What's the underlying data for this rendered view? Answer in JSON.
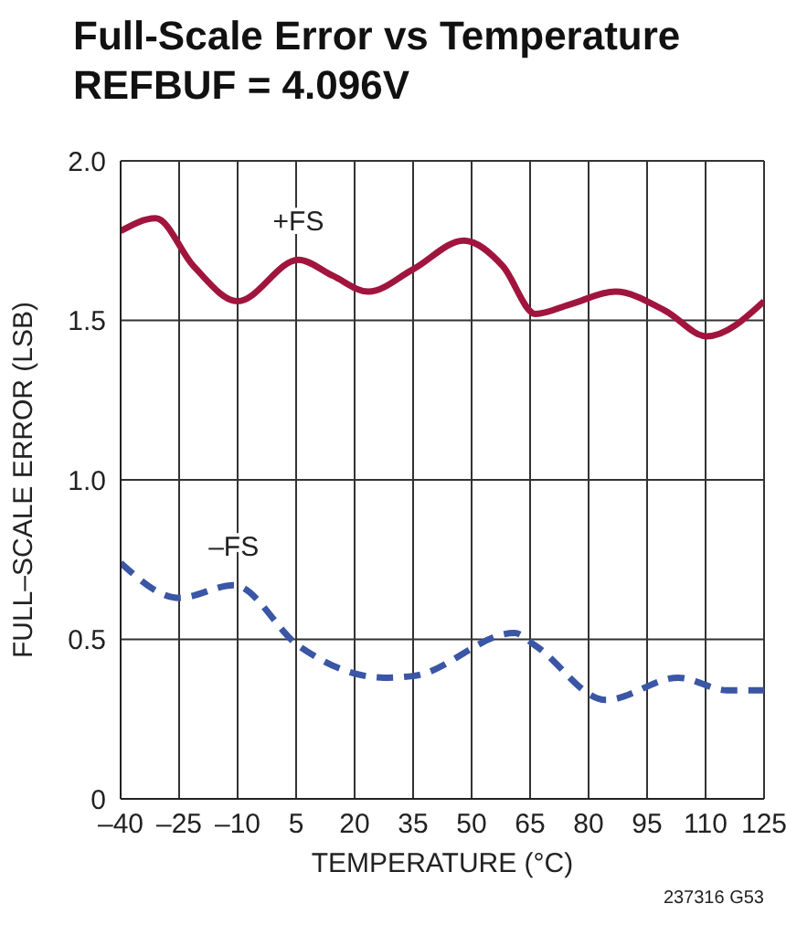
{
  "chart_data": {
    "type": "line",
    "title": "Full-Scale Error vs Temperature",
    "subtitle": "REFBUF = 4.096V",
    "xlabel": "TEMPERATURE (°C)",
    "ylabel": "FULL–SCALE ERROR (LSB)",
    "annotations": [
      "237316 G53"
    ],
    "xlim": [
      -40,
      125
    ],
    "xticks": [
      {
        "value": -40,
        "label": "–40"
      },
      {
        "value": -25,
        "label": "–25"
      },
      {
        "value": -10,
        "label": "–10"
      },
      5,
      20,
      35,
      50,
      65,
      80,
      95,
      110,
      125
    ],
    "ylim": [
      0,
      2
    ],
    "yticks": [
      0,
      0.5,
      {
        "value": 1,
        "label": "1.0"
      },
      1.5,
      {
        "value": 2,
        "label": "2.0"
      }
    ],
    "grid": true,
    "marker": "none",
    "series": [
      {
        "name": "+FS",
        "color": "#a0153e",
        "line_style": "solid",
        "x": [
          -40,
          -31,
          -21.3,
          -10,
          5.6,
          14.4,
          23.5,
          35,
          48,
          58,
          66.4,
          75.2,
          86.9,
          99.7,
          110.3,
          125
        ],
        "values": [
          1.78,
          1.82,
          1.67,
          1.56,
          1.69,
          1.64,
          1.59,
          1.66,
          1.75,
          1.67,
          1.52,
          1.55,
          1.59,
          1.53,
          1.45,
          1.56
        ]
      },
      {
        "name": "–FS",
        "color": "#3a56a5",
        "line_style": "dashed",
        "x": [
          -40,
          -25,
          -11,
          5.6,
          27.5,
          35,
          61,
          66.4,
          84.4,
          103,
          115.6,
          125
        ],
        "values": [
          0.74,
          0.63,
          0.67,
          0.48,
          0.38,
          0.385,
          0.52,
          0.48,
          0.31,
          0.38,
          0.34,
          0.34
        ]
      }
    ]
  }
}
